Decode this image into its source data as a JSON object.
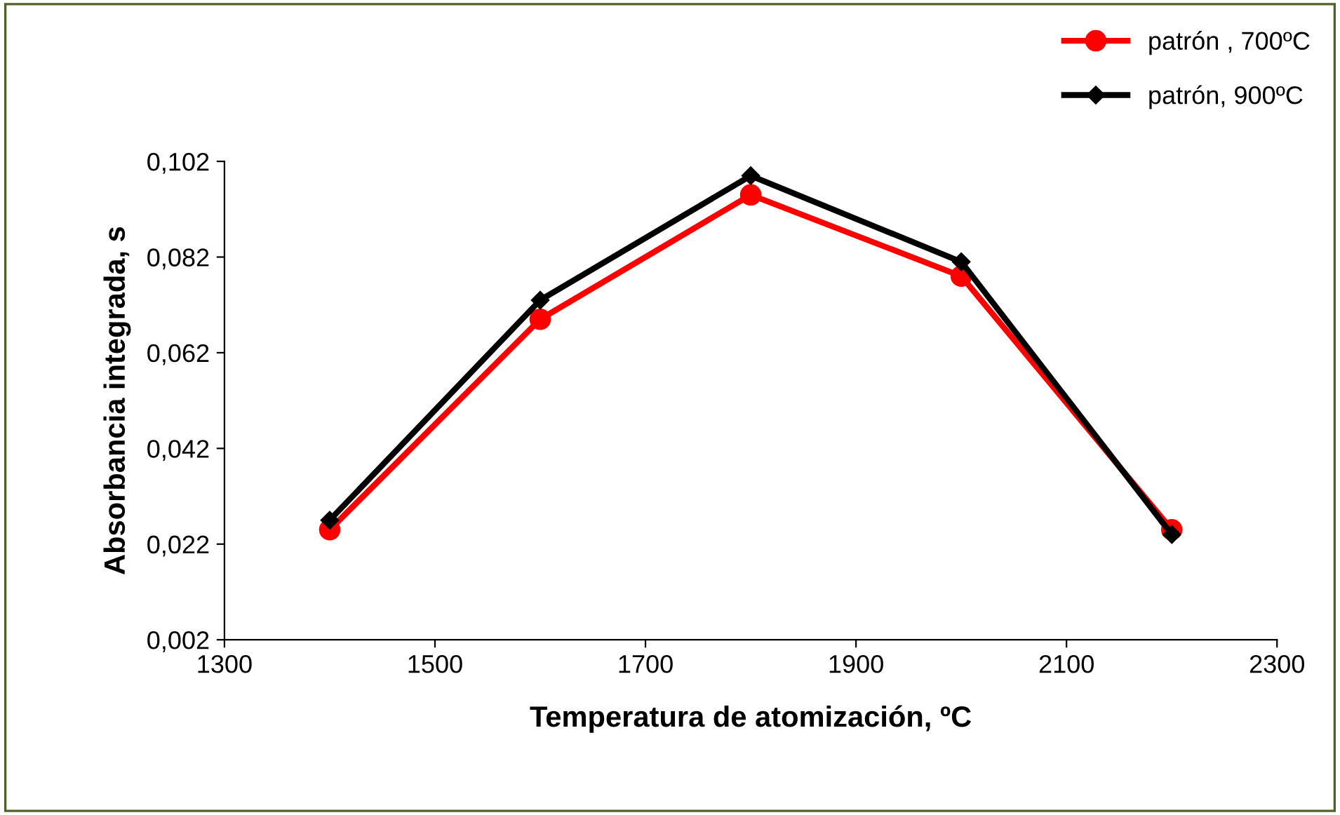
{
  "chart_data": {
    "type": "line",
    "xlabel": "Temperatura de atomización, ºC",
    "ylabel": "Absorbancia integrada, s",
    "x": [
      1400,
      1600,
      1800,
      2000,
      2200
    ],
    "series": [
      {
        "name": "patrón , 700ºC",
        "color": "#ff0000",
        "marker": "circle",
        "values": [
          0.025,
          0.069,
          0.095,
          0.078,
          0.025
        ]
      },
      {
        "name": "patrón, 900ºC",
        "color": "#000000",
        "marker": "diamond",
        "values": [
          0.027,
          0.073,
          0.099,
          0.081,
          0.024
        ]
      }
    ],
    "xlim": [
      1300,
      2300
    ],
    "xticks": [
      1300,
      1500,
      1700,
      1900,
      2100,
      2300
    ],
    "ylim": [
      0.002,
      0.102
    ],
    "yticks": [
      {
        "value": 0.002,
        "label": "0,002"
      },
      {
        "value": 0.022,
        "label": "0,022"
      },
      {
        "value": 0.042,
        "label": "0,042"
      },
      {
        "value": 0.062,
        "label": "0,062"
      },
      {
        "value": 0.082,
        "label": "0,082"
      },
      {
        "value": 0.102,
        "label": "0,102"
      }
    ],
    "grid": false,
    "legend": "top right",
    "line_style": "solid"
  }
}
